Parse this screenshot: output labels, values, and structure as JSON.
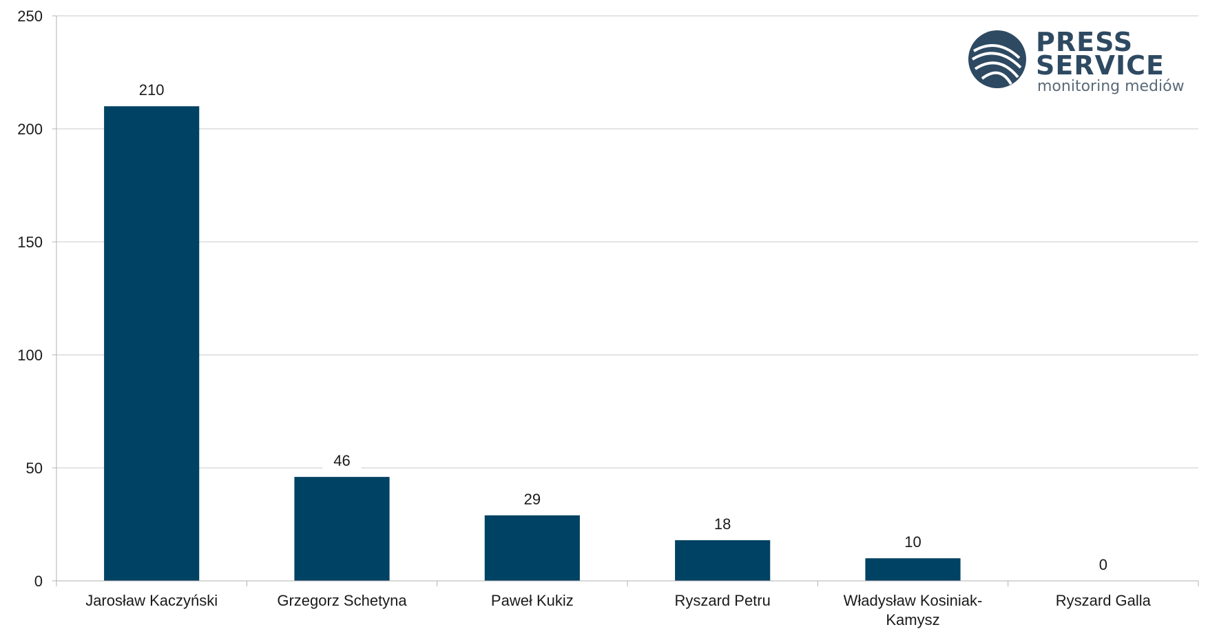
{
  "chart_data": {
    "type": "bar",
    "categories": [
      "Jarosław Kaczyński",
      "Grzegorz Schetyna",
      "Paweł Kukiz",
      "Ryszard Petru",
      "Władysław Kosiniak-Kamysz",
      "Ryszard Galla"
    ],
    "category_lines": [
      [
        "Jarosław Kaczyński"
      ],
      [
        "Grzegorz Schetyna"
      ],
      [
        "Paweł Kukiz"
      ],
      [
        "Ryszard Petru"
      ],
      [
        "Władysław Kosiniak-",
        "Kamysz"
      ],
      [
        "Ryszard Galla"
      ]
    ],
    "values": [
      210,
      46,
      29,
      18,
      10,
      0
    ],
    "ylim": [
      0,
      250
    ],
    "yticks": [
      0,
      50,
      100,
      150,
      200,
      250
    ],
    "grid": true,
    "bar_color": "#004263",
    "title": "",
    "xlabel": "",
    "ylabel": ""
  },
  "logo": {
    "line1": "PRESS",
    "line2": "SERVICE",
    "tagline": "monitoring mediów",
    "color": "#2e4a62"
  }
}
